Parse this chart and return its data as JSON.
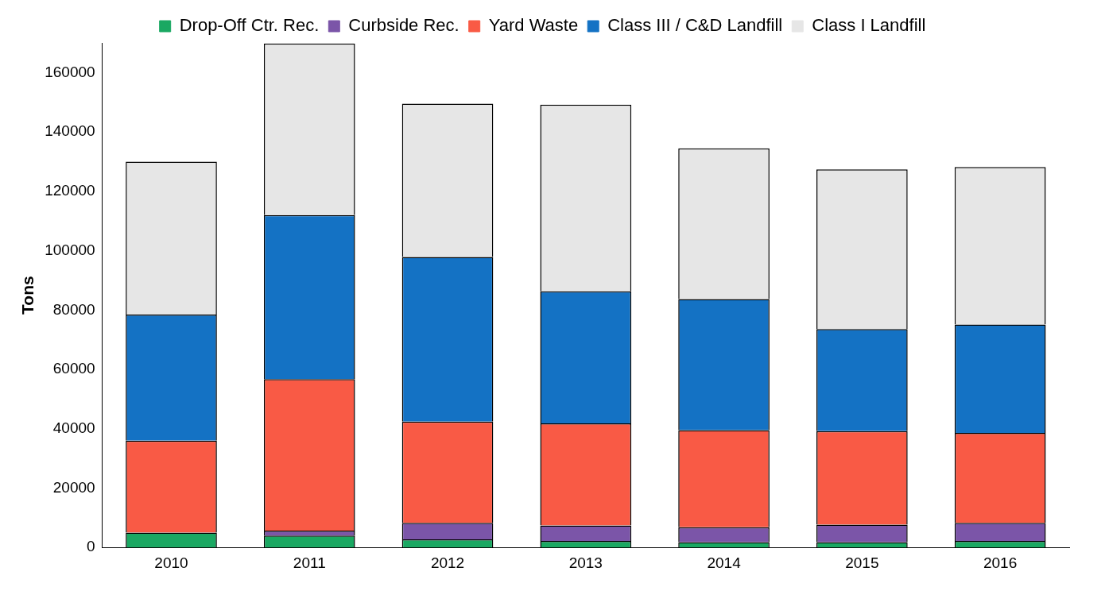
{
  "chart_data": {
    "type": "bar",
    "stacked": true,
    "ylabel": "Tons",
    "categories": [
      "2010",
      "2011",
      "2012",
      "2013",
      "2014",
      "2015",
      "2016"
    ],
    "series": [
      {
        "name": "Drop-Off Ctr. Rec.",
        "color": "#1aa862",
        "values": [
          5000,
          4000,
          2700,
          2200,
          1800,
          1800,
          2200
        ]
      },
      {
        "name": "Curbside Rec.",
        "color": "#7b55a8",
        "values": [
          0,
          1700,
          5600,
          5200,
          5000,
          5900,
          6100
        ]
      },
      {
        "name": "Yard Waste",
        "color": "#f95a45",
        "values": [
          31000,
          51000,
          34100,
          34400,
          32700,
          31500,
          30300
        ]
      },
      {
        "name": "Class III / C&D Landfill",
        "color": "#1472c4",
        "values": [
          42500,
          55300,
          55500,
          44500,
          44200,
          34400,
          36500
        ]
      },
      {
        "name": "Class I Landfill",
        "color": "#e6e6e6",
        "values": [
          51500,
          57800,
          51600,
          62900,
          50800,
          53800,
          53100
        ]
      }
    ],
    "ylim": [
      0,
      170000
    ],
    "yticks": [
      0,
      20000,
      40000,
      60000,
      80000,
      100000,
      120000,
      140000,
      160000
    ],
    "grid": false,
    "legend": "top"
  }
}
